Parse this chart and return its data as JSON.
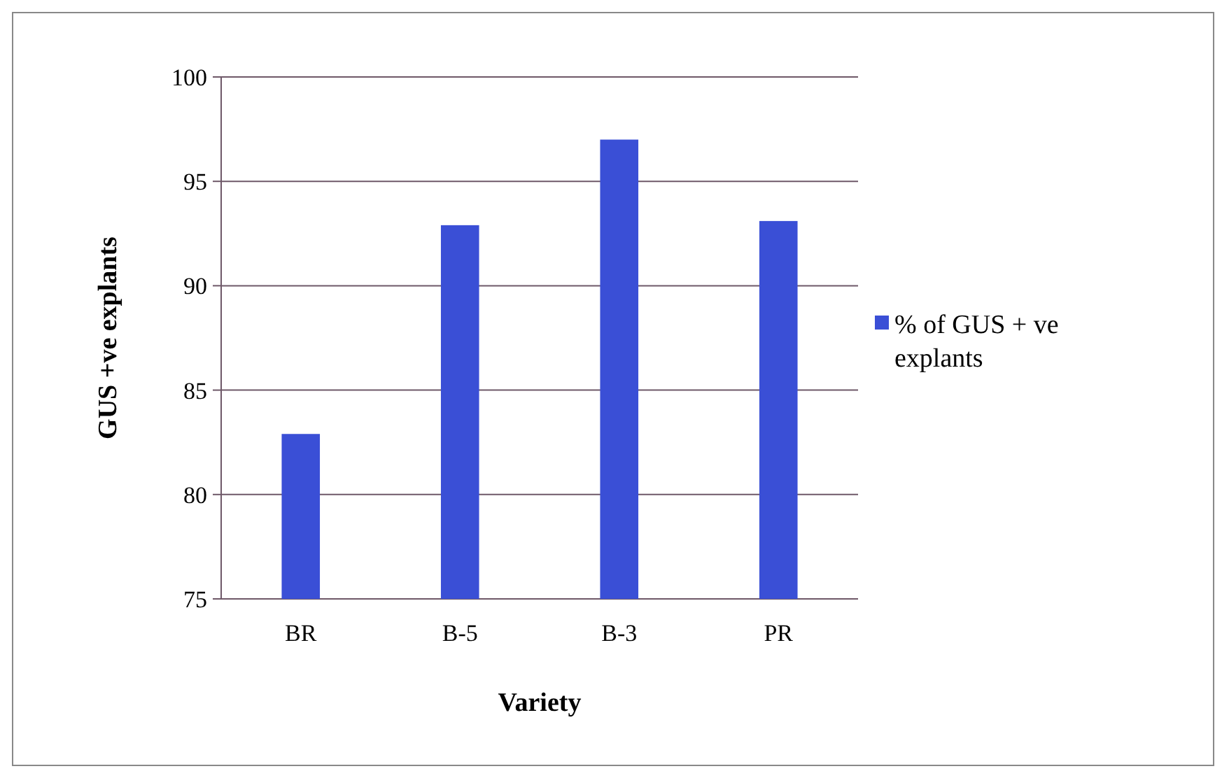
{
  "chart_data": {
    "type": "bar",
    "xlabel": "Variety",
    "ylabel": "GUS +ve explants",
    "categories": [
      "BR",
      "B-5",
      "B-3",
      "PR"
    ],
    "series": [
      {
        "name": "% of GUS + ve explants",
        "color": "#3a4fd6",
        "values": [
          82.9,
          92.9,
          97.0,
          93.1
        ]
      }
    ],
    "ylim": [
      75,
      100
    ],
    "yticks": [
      75,
      80,
      85,
      90,
      95,
      100
    ],
    "grid": "y",
    "legend": "right"
  }
}
